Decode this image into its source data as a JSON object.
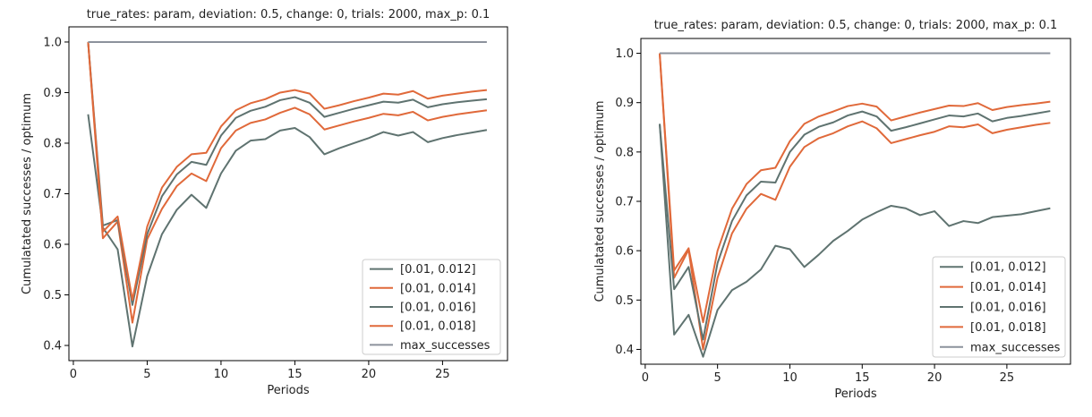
{
  "chart_data": [
    {
      "type": "line",
      "title": "true_rates: param, deviation: 0.5, change: 0, trials: 2000, max_p: 0.1",
      "xlabel": "Periods",
      "ylabel": "Cumulatated successes / optimum",
      "xlim": [
        -0.3,
        29.4
      ],
      "ylim": [
        0.37,
        1.03
      ],
      "xticks": [
        0,
        5,
        10,
        15,
        20,
        25
      ],
      "yticks": [
        0.4,
        0.5,
        0.6,
        0.7,
        0.8,
        0.9,
        1.0
      ],
      "grid": false,
      "legend_position": "bottom-right",
      "x": [
        1,
        2,
        3,
        4,
        5,
        6,
        7,
        8,
        9,
        10,
        11,
        12,
        13,
        14,
        15,
        16,
        17,
        18,
        19,
        20,
        21,
        22,
        23,
        24,
        25,
        26,
        27,
        28
      ],
      "series": [
        {
          "name": "[0.01, 0.012]",
          "color": "#5f7370",
          "values": [
            0.857,
            0.633,
            0.59,
            0.398,
            0.537,
            0.62,
            0.668,
            0.698,
            0.672,
            0.74,
            0.785,
            0.805,
            0.808,
            0.825,
            0.83,
            0.812,
            0.778,
            0.79,
            0.8,
            0.81,
            0.822,
            0.815,
            0.822,
            0.802,
            0.81,
            0.816,
            0.821,
            0.826
          ]
        },
        {
          "name": "[0.01, 0.014]",
          "color": "#e0693a",
          "values": [
            1.0,
            0.612,
            0.645,
            0.445,
            0.61,
            0.67,
            0.715,
            0.74,
            0.725,
            0.79,
            0.825,
            0.84,
            0.847,
            0.86,
            0.87,
            0.857,
            0.827,
            0.835,
            0.843,
            0.85,
            0.858,
            0.855,
            0.862,
            0.845,
            0.852,
            0.857,
            0.861,
            0.865
          ]
        },
        {
          "name": "[0.01, 0.016]",
          "color": "#5f7370",
          "values": [
            1.0,
            0.637,
            0.648,
            0.48,
            0.62,
            0.695,
            0.738,
            0.763,
            0.757,
            0.815,
            0.85,
            0.864,
            0.872,
            0.885,
            0.891,
            0.88,
            0.852,
            0.86,
            0.868,
            0.875,
            0.882,
            0.88,
            0.886,
            0.871,
            0.877,
            0.881,
            0.884,
            0.887
          ]
        },
        {
          "name": "[0.01, 0.018]",
          "color": "#e0693a",
          "values": [
            1.0,
            0.625,
            0.655,
            0.49,
            0.635,
            0.712,
            0.753,
            0.778,
            0.781,
            0.833,
            0.865,
            0.879,
            0.887,
            0.9,
            0.905,
            0.898,
            0.868,
            0.875,
            0.883,
            0.89,
            0.898,
            0.896,
            0.903,
            0.888,
            0.894,
            0.898,
            0.902,
            0.905
          ]
        },
        {
          "name": "max_successes",
          "color": "#8c929c",
          "values": [
            1.0,
            1.0,
            1.0,
            1.0,
            1.0,
            1.0,
            1.0,
            1.0,
            1.0,
            1.0,
            1.0,
            1.0,
            1.0,
            1.0,
            1.0,
            1.0,
            1.0,
            1.0,
            1.0,
            1.0,
            1.0,
            1.0,
            1.0,
            1.0,
            1.0,
            1.0,
            1.0,
            1.0
          ]
        }
      ]
    },
    {
      "type": "line",
      "title": "true_rates: param, deviation: 0.5, change: 0, trials: 2000, max_p: 0.1",
      "xlabel": "Periods",
      "ylabel": "Cumulatated successes / optimum",
      "xlim": [
        -0.3,
        29.4
      ],
      "ylim": [
        0.37,
        1.03
      ],
      "xticks": [
        0,
        5,
        10,
        15,
        20,
        25
      ],
      "yticks": [
        0.4,
        0.5,
        0.6,
        0.7,
        0.8,
        0.9,
        1.0
      ],
      "grid": false,
      "legend_position": "bottom-right",
      "x": [
        1,
        2,
        3,
        4,
        5,
        6,
        7,
        8,
        9,
        10,
        11,
        12,
        13,
        14,
        15,
        16,
        17,
        18,
        19,
        20,
        21,
        22,
        23,
        24,
        25,
        26,
        27,
        28
      ],
      "series": [
        {
          "name": "[0.01, 0.012]",
          "color": "#5f7370",
          "values": [
            0.857,
            0.43,
            0.47,
            0.385,
            0.48,
            0.52,
            0.537,
            0.562,
            0.61,
            0.603,
            0.567,
            0.592,
            0.62,
            0.64,
            0.663,
            0.678,
            0.691,
            0.686,
            0.672,
            0.68,
            0.65,
            0.66,
            0.656,
            0.668,
            0.671,
            0.674,
            0.68,
            0.686
          ]
        },
        {
          "name": "[0.01, 0.014]",
          "color": "#e0693a",
          "values": [
            1.0,
            0.545,
            0.602,
            0.4,
            0.545,
            0.635,
            0.685,
            0.715,
            0.703,
            0.77,
            0.81,
            0.828,
            0.838,
            0.852,
            0.862,
            0.848,
            0.818,
            0.826,
            0.834,
            0.841,
            0.852,
            0.85,
            0.856,
            0.838,
            0.845,
            0.85,
            0.855,
            0.859
          ]
        },
        {
          "name": "[0.01, 0.016]",
          "color": "#5f7370",
          "values": [
            0.857,
            0.522,
            0.567,
            0.42,
            0.575,
            0.66,
            0.712,
            0.74,
            0.738,
            0.8,
            0.835,
            0.851,
            0.86,
            0.874,
            0.882,
            0.872,
            0.843,
            0.85,
            0.858,
            0.866,
            0.874,
            0.872,
            0.878,
            0.862,
            0.869,
            0.873,
            0.878,
            0.883
          ]
        },
        {
          "name": "[0.01, 0.018]",
          "color": "#e0693a",
          "values": [
            1.0,
            0.56,
            0.605,
            0.455,
            0.6,
            0.685,
            0.735,
            0.763,
            0.768,
            0.822,
            0.857,
            0.872,
            0.882,
            0.893,
            0.898,
            0.892,
            0.864,
            0.872,
            0.88,
            0.887,
            0.894,
            0.893,
            0.899,
            0.885,
            0.891,
            0.895,
            0.898,
            0.902
          ]
        },
        {
          "name": "max_successes",
          "color": "#8c929c",
          "values": [
            1.0,
            1.0,
            1.0,
            1.0,
            1.0,
            1.0,
            1.0,
            1.0,
            1.0,
            1.0,
            1.0,
            1.0,
            1.0,
            1.0,
            1.0,
            1.0,
            1.0,
            1.0,
            1.0,
            1.0,
            1.0,
            1.0,
            1.0,
            1.0,
            1.0,
            1.0,
            1.0,
            1.0
          ]
        }
      ]
    }
  ]
}
